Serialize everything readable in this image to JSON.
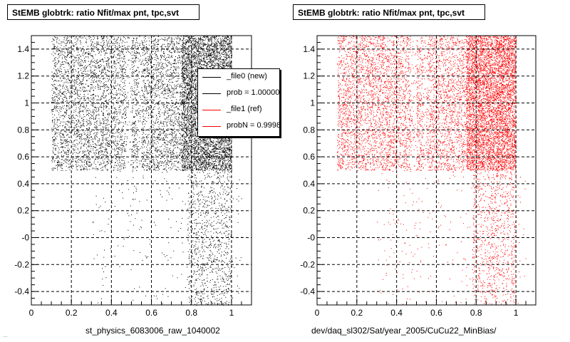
{
  "pads": [
    {
      "title": "StEMB globtrk: ratio Nfit/max pnt, tpc,svt",
      "xlabel": "st_physics_6083006_raw_1040002",
      "color": "#000000"
    },
    {
      "title": "StEMB globtrk: ratio Nfit/max pnt, tpc,svt",
      "xlabel": "dev/daq_sl302/Sat/year_2005/CuCu22_MinBias/",
      "color": "#ff0000"
    }
  ],
  "legend": {
    "entries": [
      {
        "label": "_file0 (new)",
        "color": "#000000"
      },
      {
        "label": "prob = 1.000000",
        "color": "#000000"
      },
      {
        "label": "_file1 (ref)",
        "color": "#ff0000"
      },
      {
        "label": "probN = 0.999800",
        "color": "#ff0000"
      }
    ]
  },
  "corner_text": "...",
  "chart_data": [
    {
      "type": "scatter",
      "title": "StEMB globtrk: ratio Nfit/max pnt, tpc,svt",
      "xlabel": "st_physics_6083006_raw_1040002",
      "ylabel": "",
      "xlim": [
        0,
        1.1
      ],
      "ylim": [
        -0.5,
        1.5
      ],
      "x_ticks": [
        "0",
        "0.2",
        "0.4",
        "0.6",
        "0.8",
        "1"
      ],
      "y_ticks": [
        "-0.4",
        "-0.2",
        "-0",
        "0.2",
        "0.4",
        "0.6",
        "0.8",
        "1",
        "1.2",
        "1.4"
      ],
      "grid": true,
      "series": [
        {
          "name": "_file0 (new)",
          "color": "#000000",
          "dense_region": {
            "x": [
              0.1,
              1.0
            ],
            "y": [
              0.5,
              1.5
            ]
          },
          "sparse_region": {
            "x": [
              0.3,
              1.05
            ],
            "y": [
              -0.5,
              0.5
            ]
          }
        }
      ]
    },
    {
      "type": "scatter",
      "title": "StEMB globtrk: ratio Nfit/max pnt, tpc,svt",
      "xlabel": "dev/daq_sl302/Sat/year_2005/CuCu22_MinBias/",
      "ylabel": "",
      "xlim": [
        0,
        1.1
      ],
      "ylim": [
        -0.5,
        1.5
      ],
      "x_ticks": [
        "0",
        "0.2",
        "0.4",
        "0.6",
        "0.8",
        "1"
      ],
      "y_ticks": [
        "-0.4",
        "-0.2",
        "-0",
        "0.2",
        "0.4",
        "0.6",
        "0.8",
        "1",
        "1.2",
        "1.4"
      ],
      "grid": true,
      "series": [
        {
          "name": "_file1 (ref)",
          "color": "#ff0000",
          "dense_region": {
            "x": [
              0.1,
              1.0
            ],
            "y": [
              0.5,
              1.5
            ]
          },
          "sparse_region": {
            "x": [
              0.3,
              1.05
            ],
            "y": [
              -0.5,
              0.5
            ]
          }
        }
      ]
    }
  ]
}
